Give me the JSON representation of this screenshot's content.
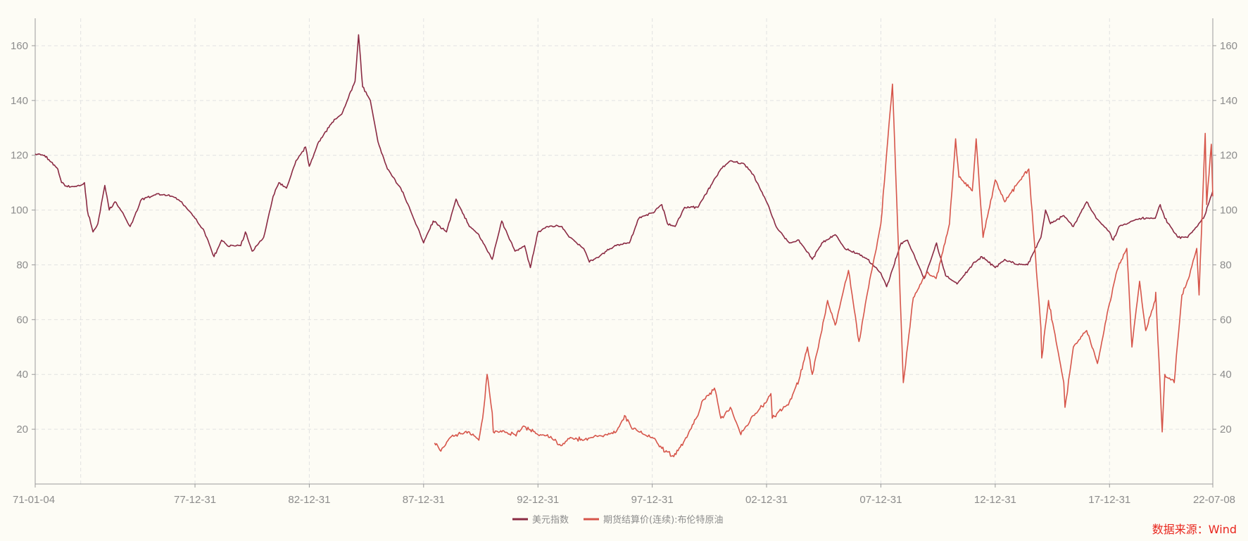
{
  "colors": {
    "background": "#fdfcf5",
    "axis": "#9a9a9a",
    "grid": "#e2e2e2",
    "tick_text": "#8c8c8c",
    "source_text": "#e8251c"
  },
  "source_label": "数据来源：Wind",
  "chart_data": {
    "type": "line",
    "x_type": "date",
    "x_range": [
      "1971-01-04",
      "2022-07-08"
    ],
    "x_tick_labels": [
      "71-01-04",
      "77-12-31",
      "82-12-31",
      "87-12-31",
      "92-12-31",
      "97-12-31",
      "02-12-31",
      "07-12-31",
      "12-12-31",
      "17-12-31",
      "22-07-08"
    ],
    "x_tick_dates": [
      "1971-01-04",
      "1977-12-31",
      "1982-12-31",
      "1987-12-31",
      "1992-12-31",
      "1997-12-31",
      "2002-12-31",
      "2007-12-31",
      "2012-12-31",
      "2017-12-31",
      "2022-07-08"
    ],
    "ylim": [
      0,
      170
    ],
    "y_ticks": [
      20,
      40,
      60,
      80,
      100,
      120,
      140,
      160
    ],
    "y2_ticks": [
      20,
      40,
      60,
      80,
      100,
      120,
      140,
      160
    ],
    "grid": true,
    "legend_position": "bottom",
    "series": [
      {
        "name": "美元指数",
        "color": "#8a2a43",
        "points": [
          [
            "1971-01-04",
            120.5
          ],
          [
            "1971-06-01",
            120
          ],
          [
            "1971-12-31",
            115
          ],
          [
            "1972-03-01",
            110
          ],
          [
            "1972-06-01",
            108.5
          ],
          [
            "1972-12-31",
            109
          ],
          [
            "1973-03-01",
            110
          ],
          [
            "1973-04-15",
            100
          ],
          [
            "1973-07-15",
            92
          ],
          [
            "1973-10-01",
            95
          ],
          [
            "1974-01-20",
            109
          ],
          [
            "1974-04-01",
            100
          ],
          [
            "1974-07-01",
            103
          ],
          [
            "1974-10-01",
            100
          ],
          [
            "1975-03-01",
            94
          ],
          [
            "1975-09-01",
            104
          ],
          [
            "1976-06-01",
            106
          ],
          [
            "1977-01-01",
            105
          ],
          [
            "1977-06-01",
            103
          ],
          [
            "1977-12-31",
            97
          ],
          [
            "1978-06-01",
            92
          ],
          [
            "1978-10-31",
            83
          ],
          [
            "1979-03-01",
            89
          ],
          [
            "1979-06-01",
            87
          ],
          [
            "1979-12-31",
            87
          ],
          [
            "1980-03-15",
            92
          ],
          [
            "1980-07-01",
            85
          ],
          [
            "1980-12-31",
            90
          ],
          [
            "1981-06-01",
            105
          ],
          [
            "1981-09-01",
            110
          ],
          [
            "1981-12-31",
            108
          ],
          [
            "1982-06-01",
            118
          ],
          [
            "1982-11-01",
            123
          ],
          [
            "1982-12-31",
            116
          ],
          [
            "1983-06-01",
            125
          ],
          [
            "1983-12-31",
            132
          ],
          [
            "1984-06-01",
            135
          ],
          [
            "1984-12-31",
            147
          ],
          [
            "1985-02-25",
            164
          ],
          [
            "1985-05-01",
            145
          ],
          [
            "1985-09-01",
            140
          ],
          [
            "1985-12-31",
            125
          ],
          [
            "1986-06-01",
            115
          ],
          [
            "1986-12-31",
            108
          ],
          [
            "1987-06-01",
            100
          ],
          [
            "1987-12-31",
            88
          ],
          [
            "1988-06-01",
            96
          ],
          [
            "1988-12-31",
            92
          ],
          [
            "1989-06-01",
            104
          ],
          [
            "1989-12-31",
            94
          ],
          [
            "1990-06-01",
            91
          ],
          [
            "1990-12-31",
            82
          ],
          [
            "1991-06-01",
            96
          ],
          [
            "1991-12-31",
            85
          ],
          [
            "1992-06-01",
            87
          ],
          [
            "1992-09-01",
            79
          ],
          [
            "1992-12-31",
            92
          ],
          [
            "1993-06-01",
            94
          ],
          [
            "1993-12-31",
            94
          ],
          [
            "1994-06-01",
            90
          ],
          [
            "1994-12-31",
            86
          ],
          [
            "1995-04-01",
            81
          ],
          [
            "1995-12-31",
            85
          ],
          [
            "1996-06-01",
            87
          ],
          [
            "1996-12-31",
            88
          ],
          [
            "1997-06-01",
            97
          ],
          [
            "1997-12-31",
            99
          ],
          [
            "1998-06-01",
            102
          ],
          [
            "1998-09-01",
            95
          ],
          [
            "1998-12-31",
            94
          ],
          [
            "1999-06-01",
            101
          ],
          [
            "1999-12-31",
            101
          ],
          [
            "2000-06-01",
            107
          ],
          [
            "2000-12-31",
            115
          ],
          [
            "2001-06-01",
            118
          ],
          [
            "2001-12-31",
            117
          ],
          [
            "2002-06-01",
            113
          ],
          [
            "2002-12-31",
            103
          ],
          [
            "2003-06-01",
            94
          ],
          [
            "2003-12-31",
            88
          ],
          [
            "2004-06-01",
            89
          ],
          [
            "2004-12-31",
            82
          ],
          [
            "2005-06-01",
            88
          ],
          [
            "2005-12-31",
            91
          ],
          [
            "2006-06-01",
            86
          ],
          [
            "2006-12-31",
            84
          ],
          [
            "2007-06-01",
            82
          ],
          [
            "2007-12-31",
            77
          ],
          [
            "2008-04-01",
            72
          ],
          [
            "2008-11-20",
            88
          ],
          [
            "2009-03-01",
            89
          ],
          [
            "2009-11-25",
            75
          ],
          [
            "2010-06-07",
            88
          ],
          [
            "2010-11-01",
            76
          ],
          [
            "2011-05-01",
            73
          ],
          [
            "2011-12-31",
            80
          ],
          [
            "2012-06-01",
            83
          ],
          [
            "2012-12-31",
            79
          ],
          [
            "2013-06-01",
            82
          ],
          [
            "2013-12-31",
            80
          ],
          [
            "2014-06-01",
            80
          ],
          [
            "2014-12-31",
            90
          ],
          [
            "2015-03-15",
            100
          ],
          [
            "2015-06-01",
            95
          ],
          [
            "2015-12-31",
            98
          ],
          [
            "2016-06-01",
            94
          ],
          [
            "2016-12-31",
            103
          ],
          [
            "2017-06-01",
            97
          ],
          [
            "2017-12-31",
            92
          ],
          [
            "2018-03-01",
            89
          ],
          [
            "2018-06-01",
            94
          ],
          [
            "2018-12-31",
            96
          ],
          [
            "2019-06-01",
            97
          ],
          [
            "2019-12-31",
            97
          ],
          [
            "2020-03-20",
            102
          ],
          [
            "2020-06-01",
            97
          ],
          [
            "2020-12-31",
            90
          ],
          [
            "2021-06-01",
            90
          ],
          [
            "2021-12-31",
            96
          ],
          [
            "2022-03-01",
            98
          ],
          [
            "2022-07-08",
            107
          ]
        ]
      },
      {
        "name": "期货结算价(连续):布伦特原油",
        "color": "#d6554a",
        "points": [
          [
            "1988-06-23",
            15
          ],
          [
            "1988-10-01",
            12
          ],
          [
            "1989-03-01",
            17
          ],
          [
            "1989-06-01",
            18
          ],
          [
            "1989-12-31",
            19
          ],
          [
            "1990-06-01",
            16
          ],
          [
            "1990-08-01",
            24
          ],
          [
            "1990-10-10",
            40
          ],
          [
            "1990-12-31",
            26
          ],
          [
            "1991-01-17",
            19
          ],
          [
            "1991-06-01",
            19
          ],
          [
            "1991-12-31",
            18
          ],
          [
            "1992-06-01",
            21
          ],
          [
            "1992-12-31",
            18
          ],
          [
            "1993-06-01",
            18
          ],
          [
            "1993-12-31",
            14
          ],
          [
            "1994-06-01",
            17
          ],
          [
            "1994-12-31",
            16
          ],
          [
            "1995-06-01",
            17
          ],
          [
            "1995-12-31",
            18
          ],
          [
            "1996-06-01",
            19
          ],
          [
            "1996-10-15",
            25
          ],
          [
            "1997-03-01",
            20
          ],
          [
            "1997-12-31",
            17
          ],
          [
            "1998-06-01",
            13
          ],
          [
            "1998-12-10",
            10
          ],
          [
            "1999-06-01",
            16
          ],
          [
            "1999-12-31",
            25
          ],
          [
            "2000-03-01",
            30
          ],
          [
            "2000-09-20",
            35
          ],
          [
            "2000-12-31",
            24
          ],
          [
            "2001-06-01",
            28
          ],
          [
            "2001-11-15",
            18
          ],
          [
            "2002-06-01",
            25
          ],
          [
            "2002-12-31",
            30
          ],
          [
            "2003-03-10",
            33
          ],
          [
            "2003-04-01",
            24
          ],
          [
            "2003-12-31",
            30
          ],
          [
            "2004-06-01",
            38
          ],
          [
            "2004-10-15",
            50
          ],
          [
            "2004-12-31",
            40
          ],
          [
            "2005-06-01",
            56
          ],
          [
            "2005-09-01",
            67
          ],
          [
            "2005-12-31",
            58
          ],
          [
            "2006-08-01",
            78
          ],
          [
            "2007-01-15",
            52
          ],
          [
            "2007-06-01",
            70
          ],
          [
            "2007-12-31",
            95
          ],
          [
            "2008-07-03",
            146
          ],
          [
            "2008-12-24",
            37
          ],
          [
            "2009-06-01",
            68
          ],
          [
            "2009-12-31",
            77
          ],
          [
            "2010-06-01",
            75
          ],
          [
            "2010-12-31",
            95
          ],
          [
            "2011-04-08",
            126
          ],
          [
            "2011-06-01",
            112
          ],
          [
            "2011-12-31",
            107
          ],
          [
            "2012-03-01",
            126
          ],
          [
            "2012-06-20",
            90
          ],
          [
            "2012-12-31",
            111
          ],
          [
            "2013-06-01",
            103
          ],
          [
            "2013-12-31",
            110
          ],
          [
            "2014-06-20",
            115
          ],
          [
            "2014-12-31",
            57
          ],
          [
            "2015-01-13",
            46
          ],
          [
            "2015-05-01",
            67
          ],
          [
            "2015-12-31",
            37
          ],
          [
            "2016-01-20",
            28
          ],
          [
            "2016-06-01",
            50
          ],
          [
            "2016-12-31",
            56
          ],
          [
            "2017-06-21",
            44
          ],
          [
            "2017-12-31",
            66
          ],
          [
            "2018-05-01",
            78
          ],
          [
            "2018-10-03",
            86
          ],
          [
            "2018-12-24",
            50
          ],
          [
            "2019-04-25",
            74
          ],
          [
            "2019-08-01",
            56
          ],
          [
            "2019-12-31",
            67
          ],
          [
            "2020-01-08",
            70
          ],
          [
            "2020-03-01",
            45
          ],
          [
            "2020-04-21",
            19
          ],
          [
            "2020-06-01",
            40
          ],
          [
            "2020-10-30",
            37
          ],
          [
            "2021-03-01",
            69
          ],
          [
            "2021-07-01",
            76
          ],
          [
            "2021-10-25",
            86
          ],
          [
            "2021-12-01",
            69
          ],
          [
            "2022-03-08",
            128
          ],
          [
            "2022-04-01",
            102
          ],
          [
            "2022-06-14",
            124
          ],
          [
            "2022-07-08",
            105
          ]
        ]
      }
    ]
  }
}
